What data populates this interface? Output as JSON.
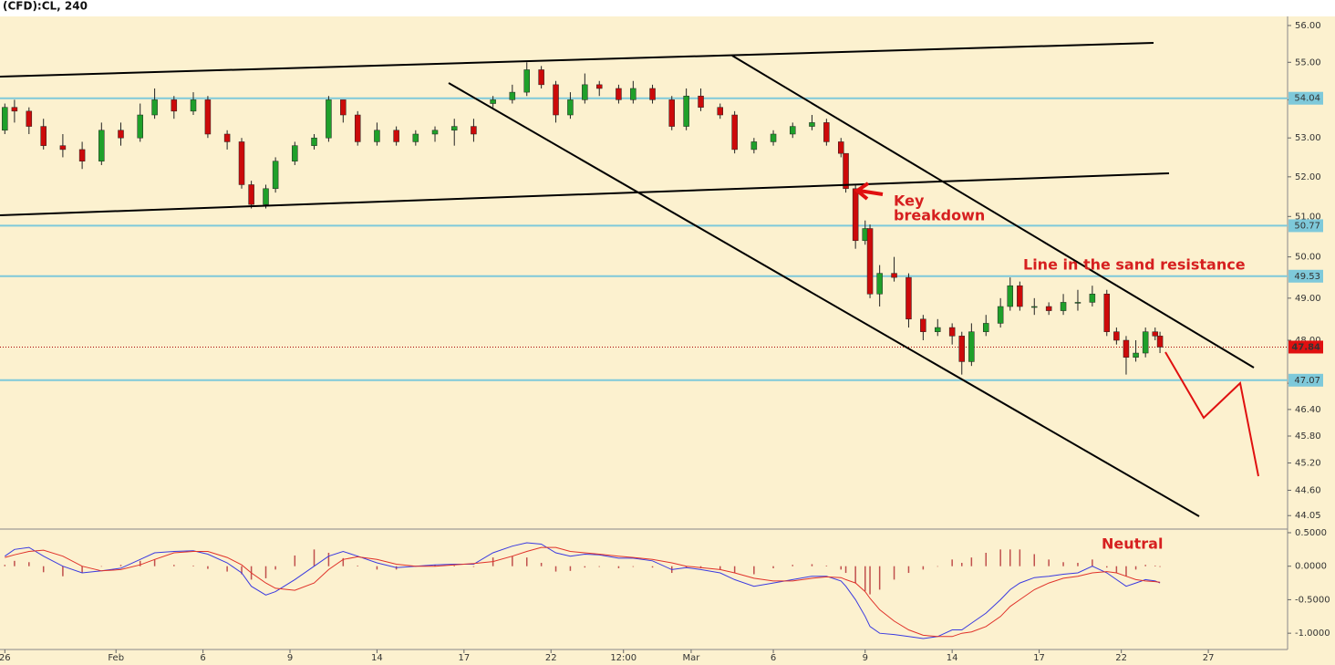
{
  "chart_data": [
    {
      "type": "candlestick",
      "title": "(CFD):CL, 240",
      "log": true,
      "ylim": [
        43.76,
        56.25
      ],
      "yticks": [
        {
          "value": 56,
          "label": "56.00"
        },
        {
          "value": 55,
          "label": "55.00"
        },
        {
          "value": 54,
          "label": "54.00"
        },
        {
          "value": 53,
          "label": "53.00"
        },
        {
          "value": 52,
          "label": "52.00"
        },
        {
          "value": 51,
          "label": "51.00"
        },
        {
          "value": 50,
          "label": "50.00"
        },
        {
          "value": 49,
          "label": "49.00"
        },
        {
          "value": 48,
          "label": "48.00"
        },
        {
          "value": 47,
          "label": "47.00"
        },
        {
          "value": 46.4,
          "label": "46.40"
        },
        {
          "value": 45.8,
          "label": "45.80"
        },
        {
          "value": 45.2,
          "label": "45.20"
        },
        {
          "value": 44.6,
          "label": "44.60"
        },
        44.05
      ],
      "xlim": [
        0,
        266.4
      ],
      "xticks": [
        {
          "value": 1,
          "label": "26"
        },
        {
          "value": 24,
          "label": "Feb"
        },
        {
          "value": 42,
          "label": "6"
        },
        {
          "value": 60,
          "label": "9"
        },
        {
          "value": 78,
          "label": "14"
        },
        {
          "value": 96,
          "label": "17"
        },
        {
          "value": 114,
          "label": "22"
        },
        {
          "value": 129,
          "label": "12:00"
        },
        {
          "value": 143,
          "label": "Mar"
        },
        {
          "value": 160,
          "label": "6"
        },
        {
          "value": 179,
          "label": "9"
        },
        {
          "value": 197,
          "label": "14"
        },
        {
          "value": 215,
          "label": "17"
        },
        {
          "value": 232,
          "label": "22"
        },
        {
          "value": 250,
          "label": "27"
        }
      ],
      "up_color": "#1fa02a",
      "down_color": "#cc0a0a",
      "level_color": "#7ec9da",
      "last_color": "#e01010",
      "x": [
        1,
        3,
        6,
        9,
        13,
        17,
        21,
        25,
        29,
        32,
        36,
        40,
        43,
        47,
        50,
        52,
        55,
        57,
        61,
        65,
        68,
        71,
        74,
        78,
        82,
        86,
        90,
        94,
        98,
        102,
        106,
        109,
        112,
        115,
        118,
        121,
        124,
        128,
        131,
        135,
        139,
        142,
        145,
        149,
        152,
        156,
        160,
        164,
        168,
        171,
        174,
        175,
        177,
        179,
        180,
        182,
        185,
        188,
        191,
        194,
        197,
        199,
        201,
        204,
        207,
        209,
        211,
        214,
        217,
        220,
        223,
        226,
        229,
        231,
        233,
        235,
        237,
        239,
        240
      ],
      "open": [
        53.2,
        53.8,
        53.7,
        53.3,
        52.8,
        52.7,
        52.4,
        53.2,
        53.0,
        53.6,
        54.0,
        53.7,
        54.0,
        53.1,
        52.9,
        51.8,
        51.3,
        51.7,
        52.4,
        52.8,
        53.0,
        54.0,
        53.6,
        52.9,
        53.2,
        52.9,
        53.1,
        53.2,
        53.3,
        53.9,
        54.0,
        54.2,
        54.8,
        54.4,
        53.6,
        54.0,
        54.4,
        54.3,
        54.0,
        54.3,
        54.0,
        53.3,
        54.1,
        53.8,
        53.6,
        52.7,
        52.9,
        53.1,
        53.3,
        53.4,
        52.9,
        52.6,
        51.7,
        50.4,
        50.7,
        49.1,
        49.6,
        49.5,
        48.5,
        48.2,
        48.3,
        48.1,
        47.5,
        48.2,
        48.4,
        48.8,
        49.3,
        48.8,
        48.8,
        48.7,
        48.9,
        48.9,
        49.1,
        48.2,
        48.0,
        47.6,
        47.7,
        48.2,
        48.1
      ],
      "high": [
        53.9,
        54.0,
        53.8,
        53.5,
        53.1,
        52.9,
        53.4,
        53.4,
        53.9,
        54.3,
        54.1,
        54.2,
        54.1,
        53.2,
        53.0,
        51.9,
        51.8,
        52.5,
        52.9,
        53.1,
        54.1,
        54.0,
        53.7,
        53.4,
        53.3,
        53.2,
        53.3,
        53.5,
        53.5,
        54.1,
        54.4,
        55.0,
        54.9,
        54.5,
        54.2,
        54.7,
        54.5,
        54.4,
        54.5,
        54.4,
        54.1,
        54.3,
        54.3,
        53.9,
        53.7,
        53.0,
        53.2,
        53.4,
        53.6,
        53.5,
        53.0,
        52.6,
        51.8,
        50.9,
        50.8,
        49.8,
        50.0,
        49.6,
        48.6,
        48.5,
        48.4,
        48.2,
        48.4,
        48.6,
        49.0,
        49.5,
        49.4,
        49.0,
        48.9,
        49.1,
        49.2,
        49.3,
        49.2,
        48.3,
        48.1,
        48.0,
        48.3,
        48.3,
        48.2
      ],
      "low": [
        53.1,
        53.4,
        53.1,
        52.7,
        52.5,
        52.2,
        52.3,
        52.8,
        52.9,
        53.5,
        53.5,
        53.6,
        53.0,
        52.7,
        51.7,
        51.2,
        51.2,
        51.6,
        52.3,
        52.7,
        52.9,
        53.4,
        52.8,
        52.8,
        52.8,
        52.8,
        52.9,
        52.8,
        52.9,
        53.8,
        53.9,
        54.1,
        54.3,
        53.4,
        53.5,
        53.9,
        54.1,
        53.9,
        53.9,
        53.9,
        53.2,
        53.2,
        53.7,
        53.5,
        52.6,
        52.6,
        52.8,
        53.0,
        53.2,
        52.8,
        52.5,
        51.6,
        50.2,
        50.3,
        49.0,
        48.8,
        49.4,
        48.3,
        48.0,
        48.1,
        47.9,
        47.2,
        47.4,
        48.1,
        48.3,
        48.7,
        48.7,
        48.6,
        48.6,
        48.6,
        48.7,
        48.8,
        48.1,
        47.9,
        47.2,
        47.5,
        47.6,
        48.0,
        47.7
      ],
      "close": [
        53.8,
        53.7,
        53.3,
        52.8,
        52.7,
        52.4,
        53.2,
        53.0,
        53.6,
        54.0,
        53.7,
        54.0,
        53.1,
        52.9,
        51.8,
        51.3,
        51.7,
        52.4,
        52.8,
        53.0,
        54.0,
        53.6,
        52.9,
        53.2,
        52.9,
        53.1,
        53.2,
        53.3,
        53.1,
        54.0,
        54.2,
        54.8,
        54.4,
        53.6,
        54.0,
        54.4,
        54.3,
        54.0,
        54.3,
        54.0,
        53.3,
        54.1,
        53.8,
        53.6,
        52.7,
        52.9,
        53.1,
        53.3,
        53.4,
        52.9,
        52.6,
        51.7,
        50.4,
        50.7,
        49.1,
        49.6,
        49.5,
        48.5,
        48.2,
        48.3,
        48.1,
        47.5,
        48.2,
        48.4,
        48.8,
        49.3,
        48.8,
        48.8,
        48.7,
        48.9,
        48.9,
        49.1,
        48.2,
        48.0,
        47.6,
        47.7,
        48.2,
        48.1,
        47.84
      ],
      "levels": [
        54.04,
        50.77,
        49.53,
        47.07
      ],
      "last_price": 47.84,
      "annotations": [
        "Key",
        "breakdown",
        "Line in the sand resistance",
        "Neutral"
      ]
    },
    {
      "type": "macd",
      "ylim": [
        -1.243,
        0.554
      ],
      "yticks": [
        {
          "value": 0.5,
          "label": "0.5000"
        },
        {
          "value": 0,
          "label": "0.0000"
        },
        {
          "value": -0.5,
          "label": "-0.5000"
        },
        {
          "value": -1,
          "label": "-1.0000"
        }
      ],
      "lines": [
        {
          "color": "#3a3ae0",
          "values": [
            0.15,
            0.25,
            0.28,
            0.15,
            0.0,
            -0.1,
            -0.07,
            -0.03,
            0.1,
            0.2,
            0.22,
            0.23,
            0.18,
            0.05,
            -0.1,
            -0.3,
            -0.43,
            -0.38,
            -0.2,
            0.0,
            0.15,
            0.22,
            0.15,
            0.05,
            -0.02,
            0.0,
            0.02,
            0.03,
            0.03,
            0.2,
            0.3,
            0.35,
            0.33,
            0.2,
            0.15,
            0.18,
            0.17,
            0.12,
            0.12,
            0.08,
            -0.05,
            -0.02,
            -0.05,
            -0.1,
            -0.2,
            -0.3,
            -0.25,
            -0.2,
            -0.15,
            -0.15,
            -0.22,
            -0.3,
            -0.5,
            -0.75,
            -0.9,
            -1.0,
            -1.02,
            -1.05,
            -1.08,
            -1.05,
            -0.95,
            -0.95,
            -0.85,
            -0.7,
            -0.5,
            -0.35,
            -0.25,
            -0.17,
            -0.15,
            -0.12,
            -0.1,
            0.0,
            -0.1,
            -0.2,
            -0.3,
            -0.25,
            -0.2,
            -0.22,
            -0.25
          ]
        },
        {
          "color": "#e0322a",
          "values": [
            0.13,
            0.17,
            0.22,
            0.24,
            0.15,
            0.0,
            -0.07,
            -0.05,
            0.02,
            0.1,
            0.2,
            0.22,
            0.22,
            0.13,
            0.02,
            -0.1,
            -0.25,
            -0.33,
            -0.36,
            -0.25,
            -0.05,
            0.1,
            0.14,
            0.1,
            0.03,
            0.0,
            0.0,
            0.02,
            0.04,
            0.07,
            0.15,
            0.22,
            0.28,
            0.28,
            0.22,
            0.2,
            0.18,
            0.15,
            0.13,
            0.1,
            0.05,
            0.0,
            -0.02,
            -0.05,
            -0.1,
            -0.18,
            -0.22,
            -0.22,
            -0.18,
            -0.16,
            -0.17,
            -0.2,
            -0.25,
            -0.38,
            -0.48,
            -0.65,
            -0.82,
            -0.95,
            -1.03,
            -1.05,
            -1.05,
            -1.0,
            -0.98,
            -0.9,
            -0.75,
            -0.6,
            -0.5,
            -0.35,
            -0.25,
            -0.18,
            -0.15,
            -0.1,
            -0.08,
            -0.1,
            -0.15,
            -0.2,
            -0.22,
            -0.23,
            -0.24
          ]
        }
      ],
      "histogram": {
        "color": "#c0504d",
        "values": [
          0.02,
          0.08,
          0.06,
          -0.09,
          -0.15,
          -0.1,
          0,
          0.02,
          0.08,
          0.1,
          0.02,
          0.01,
          -0.04,
          -0.08,
          -0.12,
          -0.2,
          -0.18,
          -0.05,
          0.16,
          0.25,
          0.2,
          0.12,
          0.01,
          -0.05,
          -0.05,
          0,
          0.02,
          0.01,
          -0.01,
          0.13,
          0.15,
          0.13,
          0.05,
          -0.08,
          -0.07,
          -0.02,
          -0.01,
          -0.03,
          -0.01,
          -0.02,
          -0.1,
          -0.02,
          -0.03,
          -0.05,
          -0.1,
          -0.12,
          -0.03,
          0.02,
          0.03,
          0.01,
          -0.05,
          -0.1,
          -0.25,
          -0.37,
          -0.42,
          -0.35,
          -0.2,
          -0.1,
          -0.05,
          0,
          0.1,
          0.05,
          0.13,
          0.2,
          0.25,
          0.25,
          0.25,
          0.18,
          0.1,
          0.06,
          0.05,
          0.1,
          -0.02,
          -0.1,
          -0.15,
          -0.05,
          0.02,
          0.01,
          -0.01
        ]
      }
    }
  ]
}
